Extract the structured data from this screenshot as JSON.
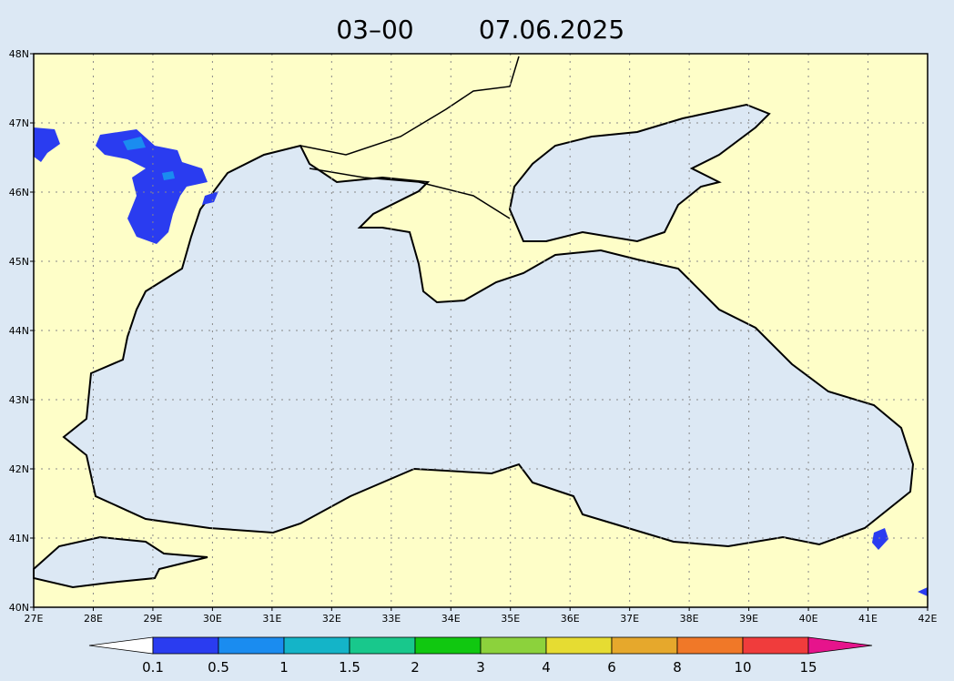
{
  "title": {
    "time": "03–00",
    "date": "07.06.2025"
  },
  "map": {
    "lat_ticks": [
      {
        "value": 40,
        "label": "40N"
      },
      {
        "value": 41,
        "label": "41N"
      },
      {
        "value": 42,
        "label": "42N"
      },
      {
        "value": 43,
        "label": "43N"
      },
      {
        "value": 44,
        "label": "44N"
      },
      {
        "value": 45,
        "label": "45N"
      },
      {
        "value": 46,
        "label": "46N"
      },
      {
        "value": 47,
        "label": "47N"
      },
      {
        "value": 48,
        "label": "48N"
      }
    ],
    "lon_ticks": [
      {
        "value": 27,
        "label": "27E"
      },
      {
        "value": 28,
        "label": "28E"
      },
      {
        "value": 29,
        "label": "29E"
      },
      {
        "value": 30,
        "label": "30E"
      },
      {
        "value": 31,
        "label": "31E"
      },
      {
        "value": 32,
        "label": "32E"
      },
      {
        "value": 33,
        "label": "33E"
      },
      {
        "value": 34,
        "label": "34E"
      },
      {
        "value": 35,
        "label": "35E"
      },
      {
        "value": 36,
        "label": "36E"
      },
      {
        "value": 37,
        "label": "37E"
      },
      {
        "value": 38,
        "label": "38E"
      },
      {
        "value": 39,
        "label": "39E"
      },
      {
        "value": 40,
        "label": "40E"
      },
      {
        "value": 41,
        "label": "41E"
      },
      {
        "value": 42,
        "label": "42E"
      }
    ],
    "grid": true
  },
  "colorbar": {
    "labels": [
      "0.1",
      "0.5",
      "1",
      "1.5",
      "2",
      "3",
      "4",
      "6",
      "8",
      "10",
      "15"
    ],
    "under_color": "#ffffff",
    "colors": [
      "#2a3cf0",
      "#1a8cf0",
      "#14b4c8",
      "#18c88c",
      "#10c810",
      "#8cd23c",
      "#e6dc32",
      "#e6a82c",
      "#f07828",
      "#f03c3c"
    ],
    "over_color": "#e6148c"
  }
}
